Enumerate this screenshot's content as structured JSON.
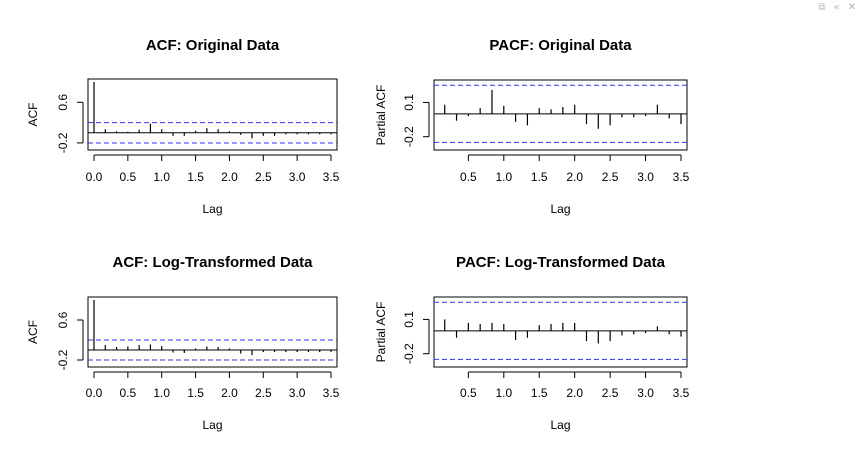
{
  "toolbar": {
    "icons": [
      "copy-icon",
      "collapse-icon",
      "close-icon"
    ]
  },
  "colors": {
    "confidence_band": "#3333ee",
    "frame": "#000000"
  },
  "chart_data": [
    {
      "type": "bar",
      "kind": "acf",
      "title": "ACF: Original Data",
      "xlabel": "Lag",
      "ylabel": "ACF",
      "xlim": [
        0,
        3.5
      ],
      "ylim": [
        -0.28,
        1.0
      ],
      "xticks": [
        0.0,
        0.5,
        1.0,
        1.5,
        2.0,
        2.5,
        3.0,
        3.5
      ],
      "xtick_labels": [
        "0.0",
        "0.5",
        "1.0",
        "1.5",
        "2.0",
        "2.5",
        "3.0",
        "3.5"
      ],
      "yticks": [
        -0.2,
        0.6
      ],
      "ytick_labels": [
        "-0.2",
        "0.6"
      ],
      "conf_band": [
        -0.2,
        0.2
      ],
      "lags": [
        0.0,
        0.1667,
        0.3333,
        0.5,
        0.6667,
        0.8333,
        1.0,
        1.1667,
        1.3333,
        1.5,
        1.6667,
        1.8333,
        2.0,
        2.1667,
        2.3333,
        2.5,
        2.6667,
        2.8333,
        3.0,
        3.1667,
        3.3333,
        3.5
      ],
      "values": [
        1.0,
        0.07,
        0.03,
        0.02,
        0.06,
        0.18,
        0.07,
        -0.06,
        -0.06,
        0.04,
        0.09,
        0.07,
        0.03,
        -0.04,
        -0.11,
        -0.06,
        -0.06,
        -0.03,
        -0.03,
        -0.03,
        -0.03,
        -0.03
      ]
    },
    {
      "type": "bar",
      "kind": "pacf",
      "title": "PACF: Original Data",
      "xlabel": "Lag",
      "ylabel": "Partial ACF",
      "xlim": [
        0.1,
        3.5
      ],
      "ylim": [
        -0.29,
        0.27
      ],
      "xticks": [
        0.5,
        1.0,
        1.5,
        2.0,
        2.5,
        3.0,
        3.5
      ],
      "xtick_labels": [
        "0.5",
        "1.0",
        "1.5",
        "2.0",
        "2.5",
        "3.0",
        "3.5"
      ],
      "yticks": [
        -0.2,
        0.1
      ],
      "ytick_labels": [
        "-0.2",
        "0.1"
      ],
      "conf_band": [
        -0.25,
        0.25
      ],
      "lags": [
        0.1667,
        0.3333,
        0.5,
        0.6667,
        0.8333,
        1.0,
        1.1667,
        1.3333,
        1.5,
        1.6667,
        1.8333,
        2.0,
        2.1667,
        2.3333,
        2.5,
        2.6667,
        2.8333,
        3.0,
        3.1667,
        3.3333,
        3.5
      ],
      "values": [
        0.08,
        -0.06,
        -0.02,
        0.05,
        0.21,
        0.07,
        -0.07,
        -0.1,
        0.05,
        0.04,
        0.06,
        0.08,
        -0.09,
        -0.13,
        -0.1,
        -0.03,
        -0.03,
        -0.02,
        0.08,
        -0.04,
        -0.09
      ]
    },
    {
      "type": "bar",
      "kind": "acf",
      "title": "ACF: Log-Transformed Data",
      "xlabel": "Lag",
      "ylabel": "ACF",
      "xlim": [
        0,
        3.5
      ],
      "ylim": [
        -0.28,
        1.0
      ],
      "xticks": [
        0.0,
        0.5,
        1.0,
        1.5,
        2.0,
        2.5,
        3.0,
        3.5
      ],
      "xtick_labels": [
        "0.0",
        "0.5",
        "1.0",
        "1.5",
        "2.0",
        "2.5",
        "3.0",
        "3.5"
      ],
      "yticks": [
        -0.2,
        0.6
      ],
      "ytick_labels": [
        "-0.2",
        "0.6"
      ],
      "conf_band": [
        -0.2,
        0.2
      ],
      "lags": [
        0.0,
        0.1667,
        0.3333,
        0.5,
        0.6667,
        0.8333,
        1.0,
        1.1667,
        1.3333,
        1.5,
        1.6667,
        1.8333,
        2.0,
        2.1667,
        2.3333,
        2.5,
        2.6667,
        2.8333,
        3.0,
        3.1667,
        3.3333,
        3.5
      ],
      "values": [
        1.0,
        0.1,
        0.06,
        0.07,
        0.1,
        0.11,
        0.08,
        -0.05,
        -0.06,
        0.03,
        0.07,
        0.06,
        0.03,
        -0.07,
        -0.1,
        -0.04,
        -0.04,
        -0.04,
        -0.04,
        -0.04,
        -0.04,
        -0.04
      ]
    },
    {
      "type": "bar",
      "kind": "pacf",
      "title": "PACF: Log-Transformed Data",
      "xlabel": "Lag",
      "ylabel": "Partial ACF",
      "xlim": [
        0.1,
        3.5
      ],
      "ylim": [
        -0.29,
        0.27
      ],
      "xticks": [
        0.5,
        1.0,
        1.5,
        2.0,
        2.5,
        3.0,
        3.5
      ],
      "xtick_labels": [
        "0.5",
        "1.0",
        "1.5",
        "2.0",
        "2.5",
        "3.0",
        "3.5"
      ],
      "yticks": [
        -0.2,
        0.1
      ],
      "ytick_labels": [
        "-0.2",
        "0.1"
      ],
      "conf_band": [
        -0.25,
        0.25
      ],
      "lags": [
        0.1667,
        0.3333,
        0.5,
        0.6667,
        0.8333,
        1.0,
        1.1667,
        1.3333,
        1.5,
        1.6667,
        1.8333,
        2.0,
        2.1667,
        2.3333,
        2.5,
        2.6667,
        2.8333,
        3.0,
        3.1667,
        3.3333,
        3.5
      ],
      "values": [
        0.1,
        -0.06,
        0.07,
        0.06,
        0.07,
        0.06,
        -0.08,
        -0.06,
        0.05,
        0.06,
        0.07,
        0.07,
        -0.09,
        -0.11,
        -0.09,
        -0.04,
        -0.03,
        -0.02,
        0.04,
        -0.03,
        -0.05
      ]
    }
  ]
}
